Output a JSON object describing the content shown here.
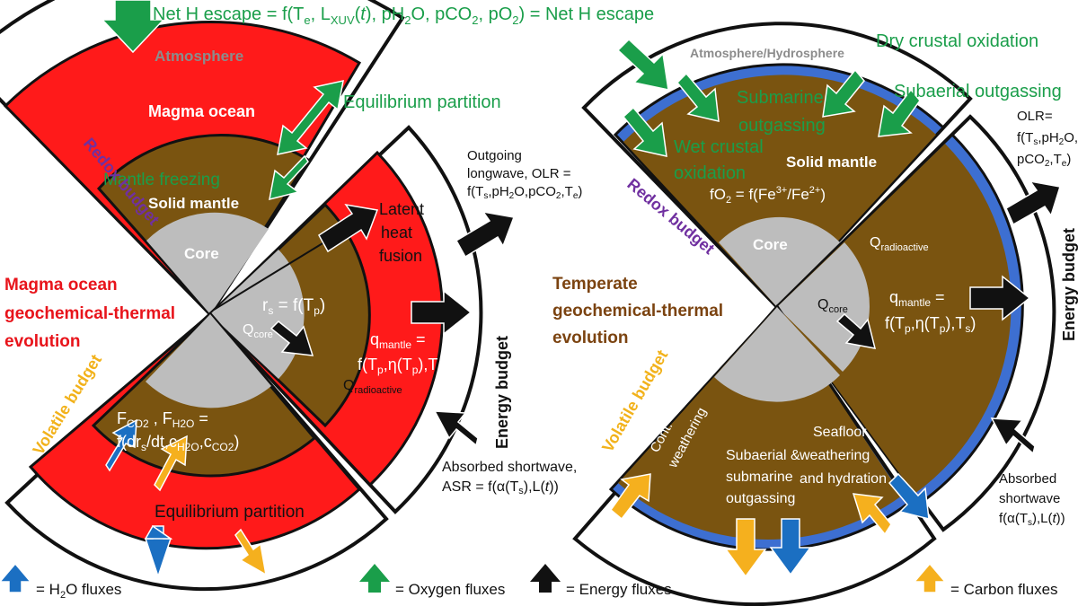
{
  "top_equation": "Net H escape = f(T",
  "labels": {
    "net_h_escape": "Net H escape = f(Te, LXUV(t), pH2O, pCO2, pO2) = Net H escape",
    "atmosphere": "Atmosphere",
    "magma_ocean": "Magma ocean",
    "equilibrium_partition_top": "Equilibrium partition",
    "mantle_freezing": "Mantle freezing",
    "solid_mantle_left": "Solid mantle",
    "core_left": "Core",
    "redox_budget_left": "Redox budget",
    "latent_heat_1": "Latent",
    "latent_heat_2": "heat",
    "latent_heat_3": "fusion",
    "rs_eq": "rs = f(Tp)",
    "q_core_left": "Qcore",
    "q_mantle_left_1": "qmantle =",
    "q_mantle_left_2": "f(Tp,η(Tp),Ts)",
    "q_radioactive_left": "Qradioactive",
    "olr_1": "Outgoing",
    "olr_2": "longwave, OLR =",
    "olr_3": "f(Ts,pH2O,pCO2,Te)",
    "energy_budget_left": "Energy budget",
    "magma_title_1": "Magma ocean",
    "magma_title_2": "geochemical-thermal",
    "magma_title_3": "evolution",
    "volatile_budget_left": "Volatile budget",
    "flux_eq_1": "FCO2 , FH2O =",
    "flux_eq_2": "f(drs/dt,cH2O,cCO2)",
    "equilibrium_partition_bottom": "Equilibrium partition",
    "asr_1": "Absorbed shortwave,",
    "asr_2": "ASR = f(α(Ts),L(t))",
    "atmosphere_hydrosphere": "Atmosphere/Hydrosphere",
    "dry_crustal_oxidation": "Dry crustal oxidation",
    "subaerial_outgassing": "Subaerial outgassing",
    "submarine_outgassing_1": "Submarine",
    "submarine_outgassing_2": "outgassing",
    "wet_crustal_1": "Wet crustal",
    "wet_crustal_2": "oxidation",
    "solid_mantle_right": "Solid mantle",
    "fo2_eq": "fO2 = f(Fe3+/Fe2+)",
    "redox_budget_right": "Redox budget",
    "core_right": "Core",
    "q_radioactive_right": "Qradioactive",
    "temperate_title_1": "Temperate",
    "temperate_title_2": "geochemical-thermal",
    "temperate_title_3": "evolution",
    "q_mantle_right_1": "qmantle =",
    "q_mantle_right_2": "f(Tp,η(Tp),Ts)",
    "q_core_right": "Qcore",
    "olr_right_1": "OLR=",
    "olr_right_2": "f(Ts,pH2O,",
    "olr_right_3": "pCO2,Te)",
    "energy_budget_right": "Energy budget",
    "volatile_budget_right": "Volatile budget",
    "cont_weathering_1": "Cont.",
    "cont_weathering_2": "weathering",
    "subaerial_submarine_1": "Subaerial &",
    "subaerial_submarine_2": "submarine",
    "subaerial_submarine_3": "outgassing",
    "seafloor_1": "Seafloor",
    "seafloor_2": "weathering",
    "seafloor_3": "and hydration",
    "asr_right_1": "Absorbed",
    "asr_right_2": "shortwave",
    "asr_right_3": "f(α(Ts),L(t))"
  },
  "legend": {
    "h2o": "= H2O fluxes",
    "oxygen": "= Oxygen fluxes",
    "energy": "= Energy fluxes",
    "carbon": "= Carbon fluxes"
  },
  "colors": {
    "oxygen": "#1a9e4a",
    "h2o": "#1b6fc2",
    "energy": "#111111",
    "carbon": "#f5b01e",
    "magma": "#ff1a1a",
    "mantle": "#7a5410",
    "core": "#bdbdbd",
    "ocean": "#3d6fd1"
  }
}
